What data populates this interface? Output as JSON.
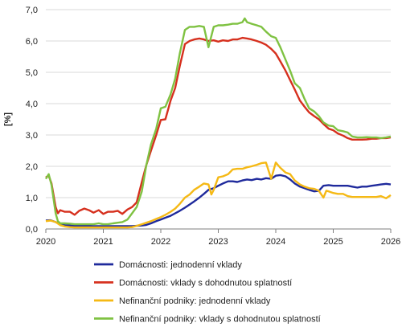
{
  "chart_data": {
    "type": "line",
    "ylabel": "[%]",
    "xlim": [
      2020,
      2026
    ],
    "ylim": [
      0,
      7
    ],
    "grid": "horizontal",
    "legend_position": "bottom",
    "x_ticks": [
      "2020",
      "2021",
      "2022",
      "2023",
      "2024",
      "2025",
      "2026"
    ],
    "y_ticks": [
      "0,0",
      "1,0",
      "2,0",
      "3,0",
      "4,0",
      "5,0",
      "6,0",
      "7,0"
    ],
    "series": [
      {
        "name": "Domácnosti: jednodenní vklady",
        "color": "#1f2a9c",
        "points": [
          [
            2020.0,
            0.27
          ],
          [
            2020.08,
            0.28
          ],
          [
            2020.17,
            0.22
          ],
          [
            2020.25,
            0.15
          ],
          [
            2020.33,
            0.12
          ],
          [
            2020.42,
            0.11
          ],
          [
            2020.5,
            0.1
          ],
          [
            2020.58,
            0.1
          ],
          [
            2020.67,
            0.1
          ],
          [
            2020.75,
            0.1
          ],
          [
            2020.83,
            0.09
          ],
          [
            2020.92,
            0.09
          ],
          [
            2021.0,
            0.09
          ],
          [
            2021.08,
            0.09
          ],
          [
            2021.17,
            0.09
          ],
          [
            2021.25,
            0.09
          ],
          [
            2021.33,
            0.09
          ],
          [
            2021.42,
            0.09
          ],
          [
            2021.5,
            0.09
          ],
          [
            2021.58,
            0.1
          ],
          [
            2021.67,
            0.11
          ],
          [
            2021.75,
            0.13
          ],
          [
            2021.83,
            0.18
          ],
          [
            2021.92,
            0.25
          ],
          [
            2022.0,
            0.3
          ],
          [
            2022.08,
            0.36
          ],
          [
            2022.17,
            0.42
          ],
          [
            2022.25,
            0.5
          ],
          [
            2022.33,
            0.58
          ],
          [
            2022.42,
            0.68
          ],
          [
            2022.5,
            0.78
          ],
          [
            2022.58,
            0.88
          ],
          [
            2022.67,
            1.0
          ],
          [
            2022.75,
            1.12
          ],
          [
            2022.83,
            1.25
          ],
          [
            2022.92,
            1.3
          ],
          [
            2023.0,
            1.38
          ],
          [
            2023.08,
            1.45
          ],
          [
            2023.17,
            1.52
          ],
          [
            2023.25,
            1.52
          ],
          [
            2023.33,
            1.5
          ],
          [
            2023.42,
            1.55
          ],
          [
            2023.5,
            1.58
          ],
          [
            2023.58,
            1.56
          ],
          [
            2023.67,
            1.6
          ],
          [
            2023.75,
            1.58
          ],
          [
            2023.83,
            1.62
          ],
          [
            2023.92,
            1.6
          ],
          [
            2024.0,
            1.7
          ],
          [
            2024.08,
            1.72
          ],
          [
            2024.17,
            1.68
          ],
          [
            2024.25,
            1.58
          ],
          [
            2024.33,
            1.45
          ],
          [
            2024.42,
            1.35
          ],
          [
            2024.5,
            1.3
          ],
          [
            2024.58,
            1.25
          ],
          [
            2024.67,
            1.2
          ],
          [
            2024.75,
            1.22
          ],
          [
            2024.83,
            1.38
          ],
          [
            2024.92,
            1.4
          ],
          [
            2025.0,
            1.38
          ],
          [
            2025.08,
            1.38
          ],
          [
            2025.17,
            1.38
          ],
          [
            2025.25,
            1.38
          ],
          [
            2025.33,
            1.35
          ],
          [
            2025.42,
            1.32
          ],
          [
            2025.5,
            1.35
          ],
          [
            2025.58,
            1.35
          ],
          [
            2025.67,
            1.38
          ],
          [
            2025.75,
            1.4
          ],
          [
            2025.83,
            1.42
          ],
          [
            2025.92,
            1.44
          ],
          [
            2026.0,
            1.42
          ]
        ]
      },
      {
        "name": "Domácnosti: vklady s dohodnutou splatností",
        "color": "#d6301e",
        "points": [
          [
            2020.0,
            1.65
          ],
          [
            2020.05,
            1.7
          ],
          [
            2020.1,
            1.45
          ],
          [
            2020.17,
            0.7
          ],
          [
            2020.21,
            0.5
          ],
          [
            2020.25,
            0.6
          ],
          [
            2020.33,
            0.55
          ],
          [
            2020.42,
            0.55
          ],
          [
            2020.5,
            0.45
          ],
          [
            2020.58,
            0.58
          ],
          [
            2020.67,
            0.65
          ],
          [
            2020.75,
            0.6
          ],
          [
            2020.83,
            0.52
          ],
          [
            2020.92,
            0.6
          ],
          [
            2021.0,
            0.48
          ],
          [
            2021.08,
            0.55
          ],
          [
            2021.17,
            0.55
          ],
          [
            2021.25,
            0.58
          ],
          [
            2021.33,
            0.48
          ],
          [
            2021.42,
            0.62
          ],
          [
            2021.5,
            0.7
          ],
          [
            2021.58,
            0.85
          ],
          [
            2021.67,
            1.5
          ],
          [
            2021.75,
            2.05
          ],
          [
            2021.83,
            2.5
          ],
          [
            2021.92,
            3.0
          ],
          [
            2022.0,
            3.48
          ],
          [
            2022.08,
            3.5
          ],
          [
            2022.17,
            4.1
          ],
          [
            2022.25,
            4.5
          ],
          [
            2022.33,
            5.2
          ],
          [
            2022.42,
            5.9
          ],
          [
            2022.5,
            6.0
          ],
          [
            2022.58,
            6.05
          ],
          [
            2022.67,
            6.08
          ],
          [
            2022.75,
            6.05
          ],
          [
            2022.83,
            6.0
          ],
          [
            2022.92,
            6.02
          ],
          [
            2023.0,
            5.98
          ],
          [
            2023.08,
            6.02
          ],
          [
            2023.17,
            6.0
          ],
          [
            2023.25,
            6.05
          ],
          [
            2023.33,
            6.05
          ],
          [
            2023.42,
            6.1
          ],
          [
            2023.5,
            6.08
          ],
          [
            2023.58,
            6.05
          ],
          [
            2023.67,
            6.0
          ],
          [
            2023.75,
            5.95
          ],
          [
            2023.83,
            5.88
          ],
          [
            2023.92,
            5.75
          ],
          [
            2024.0,
            5.6
          ],
          [
            2024.08,
            5.35
          ],
          [
            2024.17,
            5.05
          ],
          [
            2024.25,
            4.75
          ],
          [
            2024.33,
            4.45
          ],
          [
            2024.42,
            4.1
          ],
          [
            2024.5,
            3.9
          ],
          [
            2024.58,
            3.72
          ],
          [
            2024.67,
            3.6
          ],
          [
            2024.75,
            3.5
          ],
          [
            2024.83,
            3.35
          ],
          [
            2024.92,
            3.2
          ],
          [
            2025.0,
            3.15
          ],
          [
            2025.08,
            3.05
          ],
          [
            2025.17,
            2.98
          ],
          [
            2025.25,
            2.9
          ],
          [
            2025.33,
            2.85
          ],
          [
            2025.42,
            2.85
          ],
          [
            2025.5,
            2.85
          ],
          [
            2025.58,
            2.86
          ],
          [
            2025.67,
            2.88
          ],
          [
            2025.75,
            2.88
          ],
          [
            2025.83,
            2.9
          ],
          [
            2025.92,
            2.9
          ],
          [
            2026.0,
            2.92
          ]
        ]
      },
      {
        "name": "Nefinanční podniky: jednodenní vklady",
        "color": "#f5b915",
        "points": [
          [
            2020.0,
            0.25
          ],
          [
            2020.08,
            0.27
          ],
          [
            2020.17,
            0.22
          ],
          [
            2020.25,
            0.12
          ],
          [
            2020.33,
            0.08
          ],
          [
            2020.42,
            0.06
          ],
          [
            2020.5,
            0.05
          ],
          [
            2020.58,
            0.05
          ],
          [
            2020.67,
            0.05
          ],
          [
            2020.75,
            0.05
          ],
          [
            2020.83,
            0.05
          ],
          [
            2020.92,
            0.05
          ],
          [
            2021.0,
            0.05
          ],
          [
            2021.08,
            0.05
          ],
          [
            2021.17,
            0.05
          ],
          [
            2021.25,
            0.05
          ],
          [
            2021.33,
            0.05
          ],
          [
            2021.42,
            0.05
          ],
          [
            2021.5,
            0.06
          ],
          [
            2021.58,
            0.1
          ],
          [
            2021.67,
            0.15
          ],
          [
            2021.75,
            0.2
          ],
          [
            2021.83,
            0.25
          ],
          [
            2021.92,
            0.32
          ],
          [
            2022.0,
            0.38
          ],
          [
            2022.08,
            0.45
          ],
          [
            2022.17,
            0.55
          ],
          [
            2022.25,
            0.65
          ],
          [
            2022.33,
            0.8
          ],
          [
            2022.42,
            1.0
          ],
          [
            2022.5,
            1.1
          ],
          [
            2022.58,
            1.25
          ],
          [
            2022.67,
            1.35
          ],
          [
            2022.75,
            1.45
          ],
          [
            2022.83,
            1.42
          ],
          [
            2022.88,
            1.1
          ],
          [
            2022.92,
            1.25
          ],
          [
            2023.0,
            1.65
          ],
          [
            2023.08,
            1.68
          ],
          [
            2023.17,
            1.75
          ],
          [
            2023.25,
            1.9
          ],
          [
            2023.33,
            1.92
          ],
          [
            2023.42,
            1.92
          ],
          [
            2023.5,
            1.97
          ],
          [
            2023.58,
            2.0
          ],
          [
            2023.67,
            2.05
          ],
          [
            2023.75,
            2.1
          ],
          [
            2023.83,
            2.12
          ],
          [
            2023.92,
            1.6
          ],
          [
            2024.0,
            2.12
          ],
          [
            2024.08,
            1.95
          ],
          [
            2024.17,
            1.8
          ],
          [
            2024.25,
            1.75
          ],
          [
            2024.33,
            1.55
          ],
          [
            2024.42,
            1.42
          ],
          [
            2024.5,
            1.35
          ],
          [
            2024.58,
            1.3
          ],
          [
            2024.67,
            1.28
          ],
          [
            2024.75,
            1.22
          ],
          [
            2024.83,
            1.0
          ],
          [
            2024.88,
            1.22
          ],
          [
            2024.92,
            1.2
          ],
          [
            2025.0,
            1.15
          ],
          [
            2025.08,
            1.12
          ],
          [
            2025.17,
            1.12
          ],
          [
            2025.25,
            1.05
          ],
          [
            2025.33,
            1.02
          ],
          [
            2025.42,
            1.02
          ],
          [
            2025.5,
            1.02
          ],
          [
            2025.58,
            1.02
          ],
          [
            2025.67,
            1.02
          ],
          [
            2025.75,
            1.02
          ],
          [
            2025.83,
            1.05
          ],
          [
            2025.92,
            0.98
          ],
          [
            2026.0,
            1.08
          ]
        ]
      },
      {
        "name": "Nefinanční podniky: vklady s dohodnutou splatností",
        "color": "#7fc242",
        "points": [
          [
            2020.0,
            1.6
          ],
          [
            2020.05,
            1.75
          ],
          [
            2020.1,
            1.4
          ],
          [
            2020.17,
            0.5
          ],
          [
            2020.21,
            0.25
          ],
          [
            2020.25,
            0.18
          ],
          [
            2020.33,
            0.18
          ],
          [
            2020.42,
            0.17
          ],
          [
            2020.5,
            0.15
          ],
          [
            2020.58,
            0.15
          ],
          [
            2020.67,
            0.15
          ],
          [
            2020.75,
            0.15
          ],
          [
            2020.83,
            0.15
          ],
          [
            2020.92,
            0.18
          ],
          [
            2021.0,
            0.15
          ],
          [
            2021.08,
            0.15
          ],
          [
            2021.17,
            0.18
          ],
          [
            2021.25,
            0.2
          ],
          [
            2021.33,
            0.22
          ],
          [
            2021.42,
            0.3
          ],
          [
            2021.5,
            0.5
          ],
          [
            2021.58,
            0.7
          ],
          [
            2021.67,
            1.2
          ],
          [
            2021.75,
            2.05
          ],
          [
            2021.83,
            2.7
          ],
          [
            2021.92,
            3.2
          ],
          [
            2022.0,
            3.85
          ],
          [
            2022.08,
            3.9
          ],
          [
            2022.17,
            4.3
          ],
          [
            2022.25,
            4.8
          ],
          [
            2022.33,
            5.6
          ],
          [
            2022.42,
            6.35
          ],
          [
            2022.5,
            6.45
          ],
          [
            2022.58,
            6.45
          ],
          [
            2022.67,
            6.48
          ],
          [
            2022.75,
            6.45
          ],
          [
            2022.83,
            5.8
          ],
          [
            2022.92,
            6.45
          ],
          [
            2023.0,
            6.5
          ],
          [
            2023.08,
            6.5
          ],
          [
            2023.17,
            6.52
          ],
          [
            2023.25,
            6.55
          ],
          [
            2023.33,
            6.55
          ],
          [
            2023.42,
            6.6
          ],
          [
            2023.46,
            6.72
          ],
          [
            2023.5,
            6.6
          ],
          [
            2023.58,
            6.55
          ],
          [
            2023.67,
            6.5
          ],
          [
            2023.75,
            6.45
          ],
          [
            2023.83,
            6.3
          ],
          [
            2023.92,
            6.15
          ],
          [
            2024.0,
            6.1
          ],
          [
            2024.08,
            5.8
          ],
          [
            2024.17,
            5.4
          ],
          [
            2024.25,
            5.05
          ],
          [
            2024.33,
            4.65
          ],
          [
            2024.42,
            4.5
          ],
          [
            2024.5,
            4.15
          ],
          [
            2024.58,
            3.85
          ],
          [
            2024.67,
            3.75
          ],
          [
            2024.75,
            3.6
          ],
          [
            2024.83,
            3.4
          ],
          [
            2024.92,
            3.3
          ],
          [
            2025.0,
            3.28
          ],
          [
            2025.08,
            3.15
          ],
          [
            2025.17,
            3.12
          ],
          [
            2025.25,
            3.08
          ],
          [
            2025.33,
            2.95
          ],
          [
            2025.42,
            2.92
          ],
          [
            2025.5,
            2.92
          ],
          [
            2025.58,
            2.93
          ],
          [
            2025.67,
            2.92
          ],
          [
            2025.75,
            2.92
          ],
          [
            2025.83,
            2.9
          ],
          [
            2025.92,
            2.92
          ],
          [
            2026.0,
            2.95
          ]
        ]
      }
    ]
  }
}
